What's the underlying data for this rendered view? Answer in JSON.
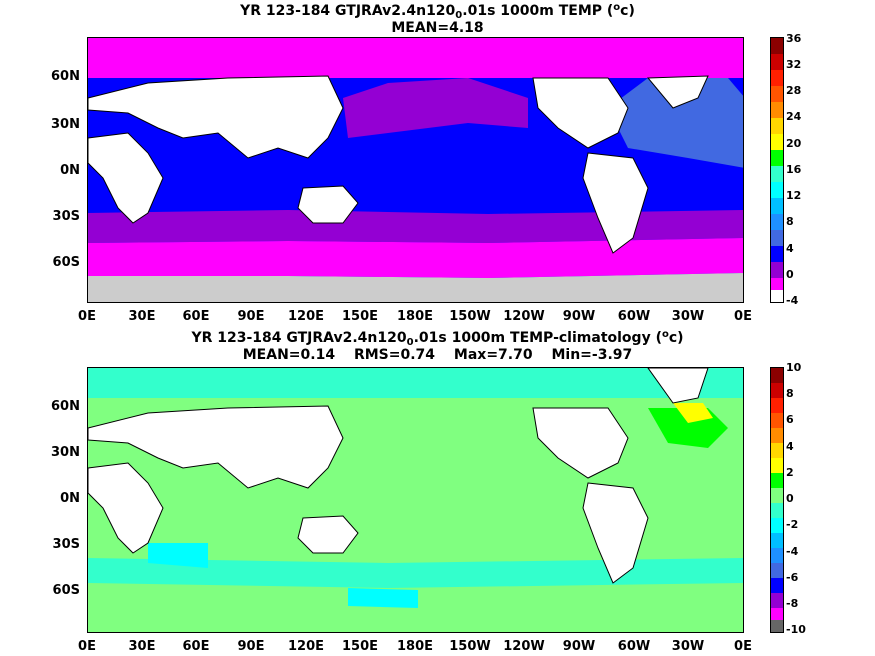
{
  "panels": [
    {
      "title_pre": "YR 123-184 GTJRAv2.4n120",
      "title_sub": "0",
      "title_mid": ".01s 1000m TEMP (",
      "title_sup": "o",
      "title_post": "c)",
      "stats": [
        "MEAN=4.18"
      ],
      "colorbar_labels": [
        "36",
        "32",
        "28",
        "24",
        "20",
        "16",
        "12",
        "8",
        "4",
        "0",
        "-4"
      ],
      "colorbar_colors": [
        "#ff00ff",
        "#cccccc"
      ]
    },
    {
      "title_pre": "YR 123-184 GTJRAv2.4n120",
      "title_sub": "0",
      "title_mid": ".01s 1000m TEMP-climatology (",
      "title_sup": "o",
      "title_post": "c)",
      "stats": [
        "MEAN=0.14",
        "RMS=0.74",
        "Max=7.70",
        "Min=-3.97"
      ],
      "colorbar_labels": [
        "10",
        "8",
        "6",
        "4",
        "2",
        "0",
        "-2",
        "-4",
        "-6",
        "-8",
        "-10"
      ]
    }
  ],
  "y_axis_labels": [
    "60N",
    "30N",
    "0N",
    "30S",
    "60S"
  ],
  "x_axis_labels": [
    "0E",
    "30E",
    "60E",
    "90E",
    "120E",
    "150E",
    "180E",
    "150W",
    "120W",
    "90W",
    "60W",
    "30W",
    "0E"
  ],
  "colors": {
    "ocean_panel1": "#0000ff",
    "ocean_panel2": "#80ff80",
    "land": "#ffffff",
    "colorbar1": [
      "#8b0000",
      "#ff0000",
      "#ff4500",
      "#ff8c00",
      "#ffd700",
      "#ffff00",
      "#00ff00",
      "#33ffcc",
      "#00ffff",
      "#00bfff",
      "#1e90ff",
      "#4169e1",
      "#0000ff",
      "#9400d3",
      "#ff00ff",
      "#cccccc",
      "#666666"
    ],
    "colorbar2": [
      "#8b0000",
      "#ff0000",
      "#ff4500",
      "#ff8c00",
      "#ffd700",
      "#ffff00",
      "#00ff00",
      "#80ff80",
      "#33ffcc",
      "#00ffff",
      "#00bfff",
      "#1e90ff",
      "#4169e1",
      "#0000ff",
      "#9400d3",
      "#ff00ff",
      "#cccccc",
      "#666666"
    ]
  }
}
